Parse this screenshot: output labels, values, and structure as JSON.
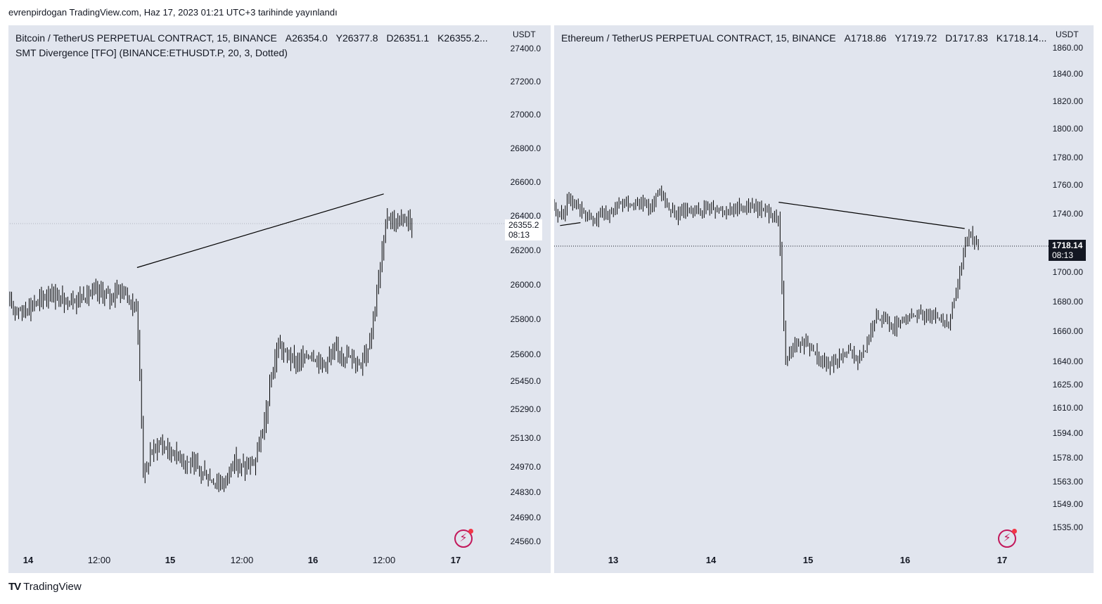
{
  "header": {
    "text": "evrenpirdogan TradingView.com, Haz 17, 2023 01:21 UTC+3 tarihinde yayınlandı"
  },
  "footer": {
    "brand": "TradingView",
    "logo_icon": "tradingview-logo-icon"
  },
  "chart_data": [
    {
      "type": "candlestick",
      "symbol_line": "Bitcoin / TetherUS PERPETUAL CONTRACT, 15, BINANCE",
      "ohlc": {
        "open": "A26354.0",
        "high": "Y26377.8",
        "low": "D26351.1",
        "close": "K26355.2..."
      },
      "indicator": "SMT Divergence [TFO] (BINANCE:ETHUSDT.P, 20, 3, Dotted)",
      "currency": "USDT",
      "y_ticks": [
        "27400.0",
        "27200.0",
        "27000.0",
        "26800.0",
        "26600.0",
        "26400.0",
        "26200.0",
        "26000.0",
        "25800.0",
        "25600.0",
        "25450.0",
        "25290.0",
        "25130.0",
        "24970.0",
        "24830.0",
        "24690.0",
        "24560.0"
      ],
      "x_ticks": [
        "14",
        "12:00",
        "15",
        "12:00",
        "16",
        "12:00",
        "17"
      ],
      "last_price": "26355.2",
      "countdown": "08:13",
      "approx_path": [
        [
          0,
          25880
        ],
        [
          0.03,
          25850
        ],
        [
          0.06,
          25900
        ],
        [
          0.09,
          25950
        ],
        [
          0.12,
          25900
        ],
        [
          0.15,
          25920
        ],
        [
          0.19,
          25960
        ],
        [
          0.22,
          25930
        ],
        [
          0.245,
          25980
        ],
        [
          0.265,
          25900
        ],
        [
          0.28,
          25850
        ],
        [
          0.295,
          24900
        ],
        [
          0.31,
          25050
        ],
        [
          0.33,
          25100
        ],
        [
          0.36,
          25050
        ],
        [
          0.39,
          25000
        ],
        [
          0.42,
          24950
        ],
        [
          0.44,
          24900
        ],
        [
          0.47,
          24870
        ],
        [
          0.49,
          25000
        ],
        [
          0.52,
          24960
        ],
        [
          0.54,
          25000
        ],
        [
          0.56,
          25200
        ],
        [
          0.575,
          25450
        ],
        [
          0.59,
          25650
        ],
        [
          0.61,
          25600
        ],
        [
          0.63,
          25550
        ],
        [
          0.66,
          25600
        ],
        [
          0.69,
          25550
        ],
        [
          0.72,
          25620
        ],
        [
          0.75,
          25580
        ],
        [
          0.77,
          25550
        ],
        [
          0.79,
          25650
        ],
        [
          0.805,
          25900
        ],
        [
          0.82,
          26200
        ],
        [
          0.83,
          26400
        ],
        [
          0.85,
          26350
        ],
        [
          0.87,
          26380
        ],
        [
          0.885,
          26355
        ]
      ],
      "divergence_line": [
        [
          0.28,
          26100
        ],
        [
          0.823,
          26530
        ]
      ]
    },
    {
      "type": "candlestick",
      "symbol_line": "Ethereum / TetherUS PERPETUAL CONTRACT, 15, BINANCE",
      "ohlc": {
        "open": "A1718.86",
        "high": "Y1719.72",
        "low": "D1717.83",
        "close": "K1718.14..."
      },
      "currency": "USDT",
      "y_ticks": [
        "1860.00",
        "1840.00",
        "1820.00",
        "1800.00",
        "1780.00",
        "1760.00",
        "1740.00",
        "1720.00",
        "1700.00",
        "1680.00",
        "1660.00",
        "1640.00",
        "1625.00",
        "1610.00",
        "1594.00",
        "1578.00",
        "1563.00",
        "1549.00",
        "1535.00"
      ],
      "x_ticks": [
        "13",
        "14",
        "15",
        "16",
        "17"
      ],
      "last_price": "1718.14",
      "countdown": "08:13",
      "approx_path": [
        [
          0,
          1743
        ],
        [
          0.02,
          1738
        ],
        [
          0.03,
          1752
        ],
        [
          0.05,
          1745
        ],
        [
          0.07,
          1738
        ],
        [
          0.09,
          1735
        ],
        [
          0.11,
          1740
        ],
        [
          0.13,
          1742
        ],
        [
          0.15,
          1748
        ],
        [
          0.17,
          1746
        ],
        [
          0.19,
          1748
        ],
        [
          0.21,
          1744
        ],
        [
          0.23,
          1755
        ],
        [
          0.25,
          1745
        ],
        [
          0.27,
          1738
        ],
        [
          0.29,
          1742
        ],
        [
          0.31,
          1740
        ],
        [
          0.34,
          1745
        ],
        [
          0.37,
          1742
        ],
        [
          0.4,
          1744
        ],
        [
          0.43,
          1746
        ],
        [
          0.46,
          1742
        ],
        [
          0.48,
          1740
        ],
        [
          0.495,
          1735
        ],
        [
          0.51,
          1640
        ],
        [
          0.53,
          1650
        ],
        [
          0.55,
          1652
        ],
        [
          0.57,
          1648
        ],
        [
          0.59,
          1640
        ],
        [
          0.61,
          1638
        ],
        [
          0.63,
          1642
        ],
        [
          0.65,
          1648
        ],
        [
          0.67,
          1640
        ],
        [
          0.69,
          1650
        ],
        [
          0.71,
          1670
        ],
        [
          0.73,
          1668
        ],
        [
          0.75,
          1662
        ],
        [
          0.77,
          1668
        ],
        [
          0.79,
          1670
        ],
        [
          0.81,
          1672
        ],
        [
          0.83,
          1670
        ],
        [
          0.85,
          1668
        ],
        [
          0.87,
          1666
        ],
        [
          0.88,
          1680
        ],
        [
          0.895,
          1700
        ],
        [
          0.905,
          1720
        ],
        [
          0.92,
          1725
        ],
        [
          0.935,
          1718
        ]
      ],
      "divergence_lines": [
        [
          [
            0.495,
            1748
          ],
          [
            0.905,
            1730
          ]
        ],
        [
          [
            0.013,
            1732
          ],
          [
            0.058,
            1734
          ]
        ]
      ]
    }
  ]
}
